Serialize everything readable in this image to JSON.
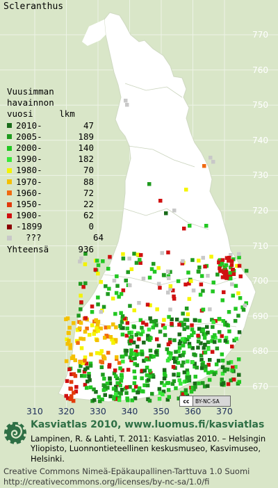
{
  "title": "Scleranthus",
  "legend": {
    "header_lines": [
      "Vuusimman",
      "havainnon",
      "vuosi     lkm"
    ],
    "rows": [
      {
        "label": "2010-",
        "count": "47",
        "color": "#1a6b1a"
      },
      {
        "label": "2005-",
        "count": "189",
        "color": "#1f9a1f"
      },
      {
        "label": "2000-",
        "count": "140",
        "color": "#22c722"
      },
      {
        "label": "1990-",
        "count": "182",
        "color": "#38e838"
      },
      {
        "label": "1980-",
        "count": "70",
        "color": "#f4f400"
      },
      {
        "label": "1970-",
        "count": "88",
        "color": "#f4c000"
      },
      {
        "label": "1960-",
        "count": "72",
        "color": "#f06a10"
      },
      {
        "label": "1950-",
        "count": "22",
        "color": "#e23a0a"
      },
      {
        "label": "1900-",
        "count": "62",
        "color": "#d01010"
      },
      {
        "label": "-1899",
        "count": "0",
        "color": "#8a0000"
      },
      {
        "label": "???",
        "count": "64",
        "color": "#c8c8c8"
      }
    ],
    "total_label": "Yhteensä",
    "total_count": "936"
  },
  "y_axis_labels": [
    "770",
    "760",
    "750",
    "740",
    "730",
    "720",
    "710",
    "700",
    "690",
    "680",
    "670"
  ],
  "x_axis_labels": [
    "310",
    "320",
    "330",
    "340",
    "350",
    "360",
    "370"
  ],
  "license_badge": {
    "left": "cc",
    "right": "BY-NC-SA"
  },
  "footer": {
    "heading": "Kasviatlas 2010, www.luomus.fi/kasviatlas",
    "citation": "Lampinen, R. & Lahti, T. 2011: Kasviatlas 2010. – Helsingin Yliopisto, Luonnontieteellinen keskusmuseo, Kasvimuseo, Helsinki.",
    "license_line1": "Creative Commons Nimeä-Epäkaupallinen-Tarttuva 1.0 Suomi",
    "license_line2": "http://creativecommons.org/licenses/by-nc-sa/1.0/fi"
  },
  "colors": {
    "background": "#d9e6c8",
    "land": "#ffffff",
    "heading": "#2e6f45"
  }
}
